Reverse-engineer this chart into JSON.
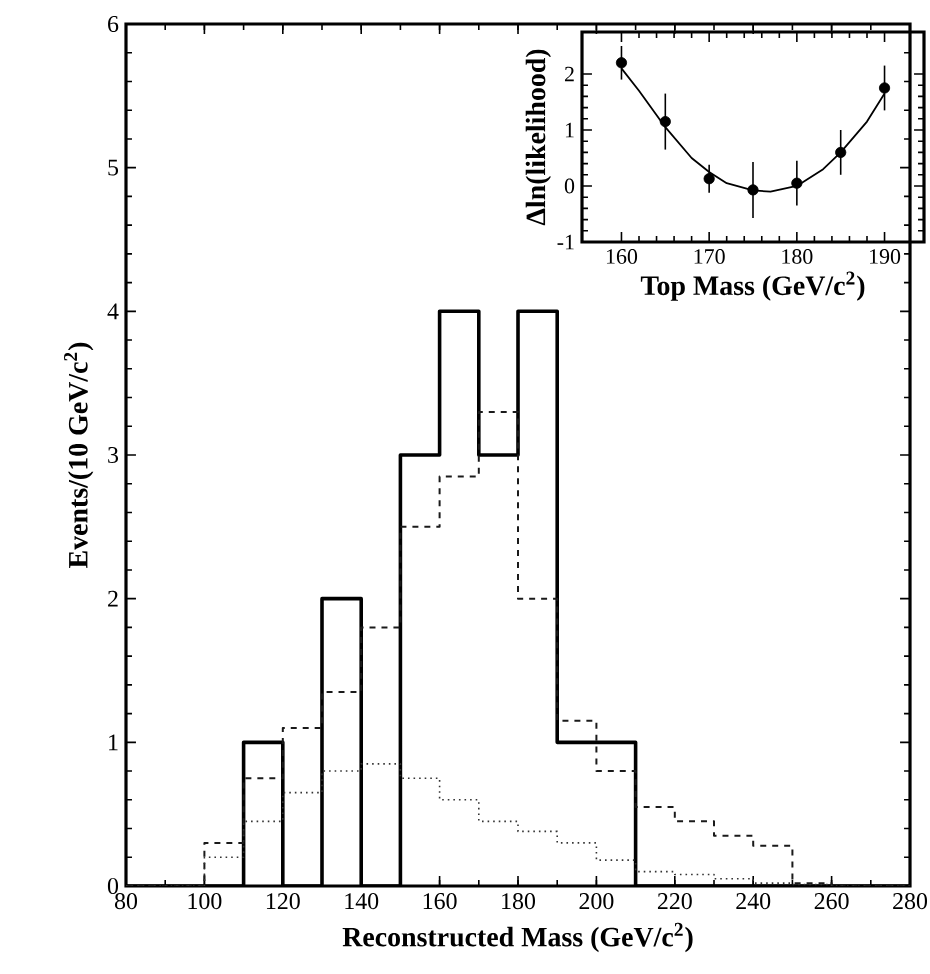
{
  "chart_data": [
    {
      "type": "histogram",
      "xlabel": "Reconstructed Mass (GeV/c$^{2}$)",
      "ylabel": "Events/(10 GeV/c$^{2}$)",
      "bins": [
        80,
        90,
        100,
        110,
        120,
        130,
        140,
        150,
        160,
        170,
        180,
        190,
        200,
        210,
        220,
        230,
        240,
        250,
        260,
        270,
        280
      ],
      "series": [
        {
          "color": "#000000",
          "line_style": "solid",
          "values": [
            0,
            0,
            0,
            1,
            0,
            2,
            0,
            3,
            4,
            3,
            4,
            1,
            1,
            0,
            0,
            0,
            0,
            0,
            0,
            0
          ]
        },
        {
          "color": "#1a1a1a",
          "line_style": "dashed",
          "values": [
            0,
            0,
            0.3,
            0.75,
            1.1,
            1.35,
            1.8,
            2.5,
            2.85,
            3.3,
            2.0,
            1.15,
            0.8,
            0.55,
            0.45,
            0.35,
            0.28,
            0.02,
            0,
            0
          ]
        },
        {
          "color": "#333333",
          "line_style": "dotted",
          "values": [
            0,
            0,
            0.2,
            0.45,
            0.65,
            0.8,
            0.85,
            0.75,
            0.6,
            0.45,
            0.38,
            0.3,
            0.18,
            0.1,
            0.08,
            0.05,
            0.02,
            0.01,
            0,
            0
          ]
        }
      ],
      "xlim": [
        80,
        280
      ],
      "ylim": [
        0,
        6
      ],
      "xticks": [
        80,
        100,
        120,
        140,
        160,
        180,
        200,
        220,
        240,
        260,
        280
      ],
      "yticks": [
        0,
        1,
        2,
        3,
        4,
        5,
        6
      ]
    },
    {
      "type": "scatter",
      "xlabel": "Top Mass (GeV/c$^{2}$)",
      "ylabel": "Δln(likelihood)",
      "series": [
        {
          "type": "scatter",
          "color": "#000000",
          "marker": "circle",
          "x": [
            160,
            165,
            170,
            175,
            180,
            185,
            190
          ],
          "values": [
            2.2,
            1.15,
            0.13,
            -0.07,
            0.05,
            0.6,
            1.75
          ],
          "errors": [
            0.3,
            0.5,
            0.25,
            0.5,
            0.4,
            0.4,
            0.4
          ]
        },
        {
          "type": "line",
          "color": "#000000",
          "marker": "none",
          "x": [
            160,
            162,
            165,
            168,
            170,
            172,
            175,
            177,
            180,
            183,
            185,
            188,
            190
          ],
          "values": [
            2.1,
            1.7,
            1.05,
            0.5,
            0.25,
            0.05,
            -0.08,
            -0.1,
            0.0,
            0.3,
            0.6,
            1.15,
            1.65
          ]
        }
      ],
      "xlim": [
        155.5,
        194.5
      ],
      "ylim": [
        -1,
        2.75
      ],
      "xticks": [
        160,
        170,
        180,
        190
      ],
      "yticks": [
        -1,
        0,
        1,
        2
      ]
    }
  ]
}
